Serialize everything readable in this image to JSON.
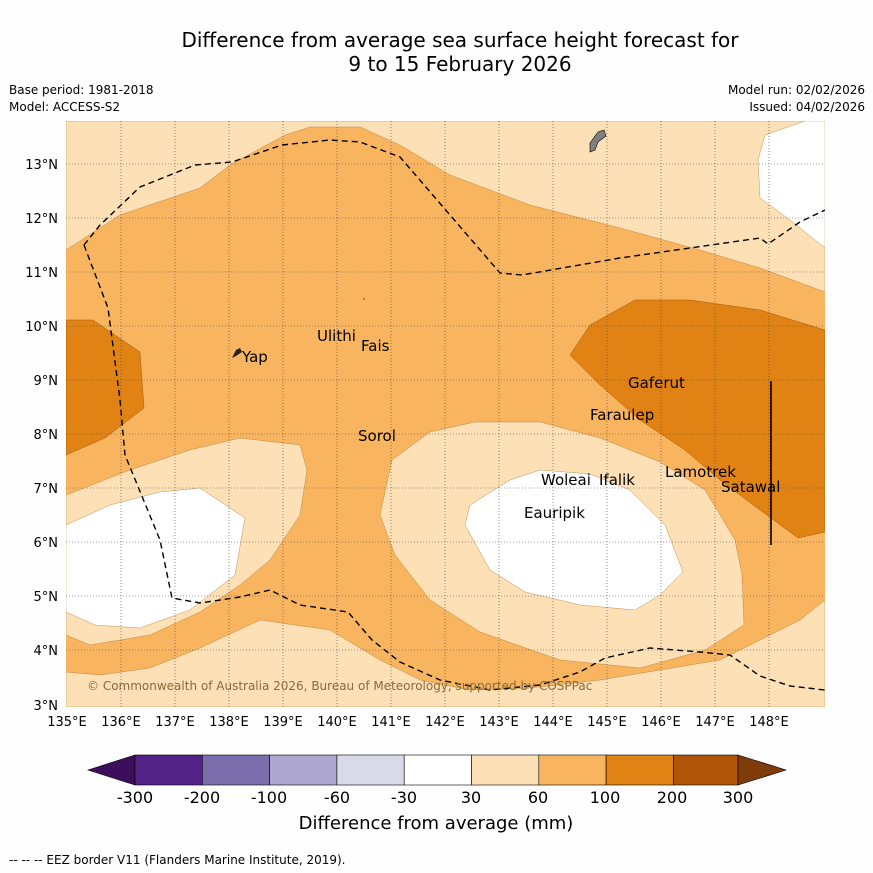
{
  "title_line1": "Difference from average sea surface height forecast for",
  "title_line2": "9 to 15 February 2026",
  "base_period": "Base period: 1981-2018",
  "model": "Model: ACCESS-S2",
  "model_run": "Model run: 02/02/2026",
  "issued": "Issued: 04/02/2026",
  "copyright": "© Commonwealth of Australia 2026, Bureau of Meteorology, supported by COSPPac",
  "footnote": "-- -- -- EEZ border V11 (Flanders Marine Institute, 2019).",
  "colors": {
    "lev_30_60": "#fde0b6",
    "lev_60_100": "#f8b45e",
    "lev_100_200": "#e08314",
    "white": "#ffffff"
  },
  "axes": {
    "lat_labels": [
      "13°N",
      "12°N",
      "11°N",
      "10°N",
      "9°N",
      "8°N",
      "7°N",
      "6°N",
      "5°N",
      "4°N",
      "3°N"
    ],
    "lon_labels": [
      "135°E",
      "136°E",
      "137°E",
      "138°E",
      "139°E",
      "140°E",
      "141°E",
      "142°E",
      "143°E",
      "144°E",
      "145°E",
      "146°E",
      "147°E",
      "148°E"
    ]
  },
  "places": [
    {
      "name": "Yap"
    },
    {
      "name": "Ulithi"
    },
    {
      "name": "Fais"
    },
    {
      "name": "Sorol"
    },
    {
      "name": "Gaferut"
    },
    {
      "name": "Faraulep"
    },
    {
      "name": "Woleai"
    },
    {
      "name": "Ifalik"
    },
    {
      "name": "Eauripik"
    },
    {
      "name": "Lamotrek"
    },
    {
      "name": "Satawal"
    }
  ],
  "colorbar": {
    "title": "Difference from average (mm)",
    "ticks": [
      "-300",
      "-200",
      "-100",
      "-60",
      "-30",
      "30",
      "60",
      "100",
      "200",
      "300"
    ],
    "colors": [
      "#3d0e5c",
      "#522287",
      "#7c6ead",
      "#ada6d0",
      "#d9d9ea",
      "#ffffff",
      "#fde0b6",
      "#f8b45e",
      "#e08314",
      "#b15508",
      "#7f3b0a"
    ]
  }
}
